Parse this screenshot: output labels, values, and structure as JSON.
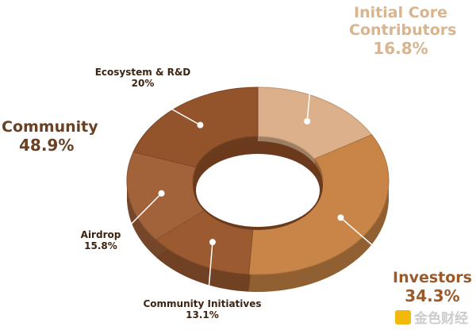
{
  "chart_data": {
    "type": "pie",
    "title": "",
    "slices": [
      {
        "label": "Initial Core Contributors",
        "value": 16.8,
        "value_label": "16.8%",
        "color": "#dcb08a"
      },
      {
        "label": "Investors",
        "value": 34.3,
        "value_label": "34.3%",
        "color": "#c88547"
      },
      {
        "label": "Community Initiatives",
        "value": 13.1,
        "value_label": "13.1%",
        "color": "#9c5a31"
      },
      {
        "label": "Airdrop",
        "value": 15.8,
        "value_label": "15.8%",
        "color": "#a2623a"
      },
      {
        "label": "Ecosystem & R&D",
        "value": 20,
        "value_label": "20%",
        "color": "#93532b"
      }
    ],
    "group": {
      "label": "Community",
      "value_label": "48.9%"
    }
  },
  "watermark": {
    "text": "金色财经"
  }
}
